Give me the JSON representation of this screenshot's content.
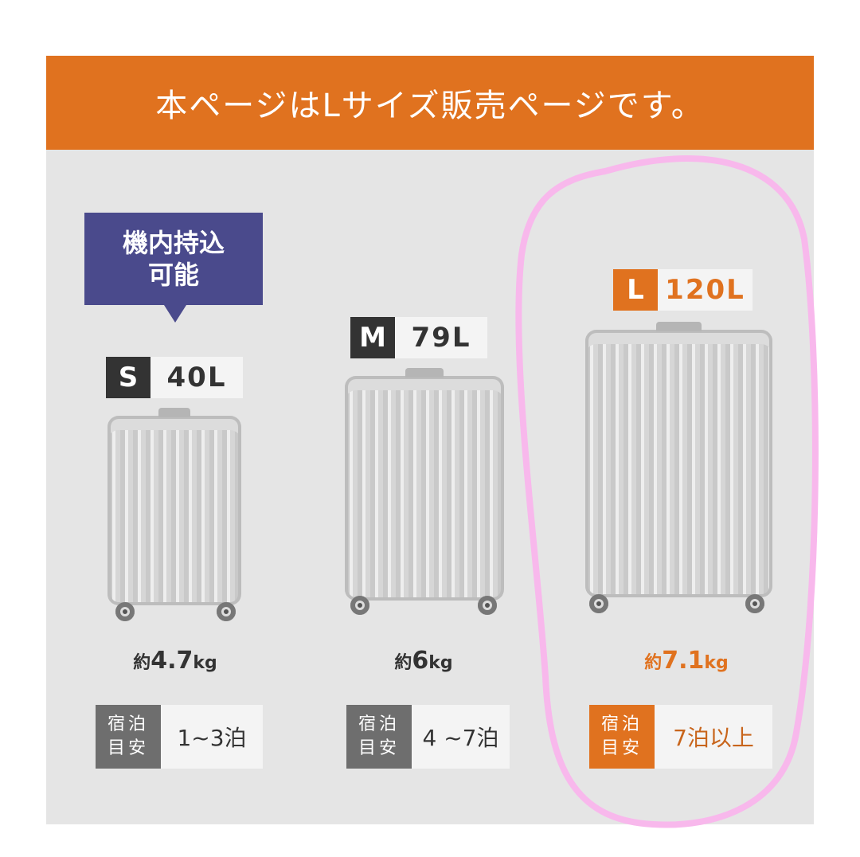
{
  "header": {
    "title": "本ページはLサイズ販売ページです。"
  },
  "colors": {
    "accent": "#e0721f",
    "carry_badge": "#4a4a8c",
    "size_dark": "#333333",
    "highlight_loop": "#f8b8ec"
  },
  "carry_on": {
    "line1": "機内持込",
    "line2": "可能"
  },
  "sizes": [
    {
      "key": "S",
      "volume": "40L",
      "weight_prefix": "約",
      "weight": "4.7",
      "unit": "kg",
      "stay_label1": "宿泊",
      "stay_label2": "目安",
      "stay": "1~3泊"
    },
    {
      "key": "M",
      "volume": "79L",
      "weight_prefix": "約",
      "weight": "6",
      "unit": "kg",
      "stay_label1": "宿泊",
      "stay_label2": "目安",
      "stay": "4 ~7泊"
    },
    {
      "key": "L",
      "volume": "120L",
      "weight_prefix": "約",
      "weight": "7.1",
      "unit": "kg",
      "stay_label1": "宿泊",
      "stay_label2": "目安",
      "stay": "7泊以上"
    }
  ]
}
